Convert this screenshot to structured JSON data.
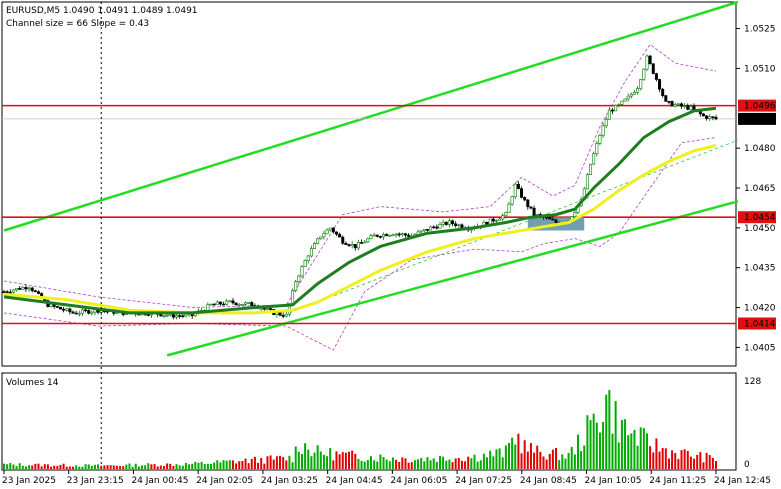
{
  "header": {
    "symbol_line": "EURUSD,M5  1.0490 1.0491 1.0489 1.0491",
    "channel_line": "Channel size = 66 Slope = 0.43"
  },
  "volume_panel": {
    "title": "Volumes 14",
    "max_label": "128",
    "min_label": "0"
  },
  "colors": {
    "bull_candle": "#007a00",
    "bear_candle": "#000000",
    "ma_fast": "#1e7d1e",
    "ma_slow": "#f0f020",
    "channel": "#22dd22",
    "channel_mid": "#22cc22",
    "bands": "#b040d0",
    "level_line": "#e01010",
    "vol_up": "#00aa00",
    "vol_down": "#e00000",
    "zone": "#5b8fa3"
  },
  "chart_data": {
    "type": "candlestick",
    "symbol": "EURUSD",
    "timeframe": "M5",
    "ylim": [
      1.0398,
      1.0535
    ],
    "y_ticks": [
      "1.0525",
      "1.0510",
      "1.0496",
      "1.0491",
      "1.0480",
      "1.0465",
      "1.0454",
      "1.0450",
      "1.0435",
      "1.0420",
      "1.0414",
      "1.0405"
    ],
    "x_ticks": [
      "23 Jan 2025",
      "23 Jan 23:15",
      "24 Jan 00:45",
      "24 Jan 02:05",
      "24 Jan 03:25",
      "24 Jan 04:45",
      "24 Jan 06:05",
      "24 Jan 07:25",
      "24 Jan 08:45",
      "24 Jan 10:05",
      "24 Jan 11:25",
      "24 Jan 12:45"
    ],
    "levels": [
      {
        "label": "1.0496",
        "value": 1.0496
      },
      {
        "label": "1.0454",
        "value": 1.0454
      },
      {
        "label": "1.0414",
        "value": 1.0414
      }
    ],
    "current_price_label": "1.0491",
    "current_price": 1.0491,
    "channel": {
      "upper": [
        [
          0,
          1.0449
        ],
        [
          234,
          1.0535
        ]
      ],
      "lower": [
        [
          52,
          1.0402
        ],
        [
          234,
          1.046
        ]
      ],
      "middle": [
        [
          91,
          1.0418
        ],
        [
          234,
          1.0483
        ]
      ]
    },
    "accumulation_zone": {
      "from_bar": 167,
      "to_bar": 185,
      "low": 1.0449,
      "high": 1.0454
    },
    "vertical_marker_bar": 31,
    "close_path": [
      [
        0,
        1.0426
      ],
      [
        8,
        1.0428
      ],
      [
        14,
        1.0421
      ],
      [
        22,
        1.0418
      ],
      [
        30,
        1.0419
      ],
      [
        38,
        1.0418
      ],
      [
        46,
        1.0418
      ],
      [
        54,
        1.0417
      ],
      [
        60,
        1.0417
      ],
      [
        66,
        1.0421
      ],
      [
        72,
        1.0422
      ],
      [
        80,
        1.0421
      ],
      [
        86,
        1.0418
      ],
      [
        90,
        1.0417
      ],
      [
        93,
        1.043
      ],
      [
        97,
        1.044
      ],
      [
        101,
        1.0447
      ],
      [
        104,
        1.045
      ],
      [
        108,
        1.0445
      ],
      [
        112,
        1.0443
      ],
      [
        118,
        1.0447
      ],
      [
        124,
        1.0448
      ],
      [
        130,
        1.0447
      ],
      [
        136,
        1.045
      ],
      [
        142,
        1.0452
      ],
      [
        148,
        1.045
      ],
      [
        152,
        1.0451
      ],
      [
        156,
        1.0453
      ],
      [
        160,
        1.0455
      ],
      [
        163,
        1.0466
      ],
      [
        166,
        1.046
      ],
      [
        169,
        1.0455
      ],
      [
        172,
        1.0454
      ],
      [
        176,
        1.0452
      ],
      [
        180,
        1.0453
      ],
      [
        184,
        1.046
      ],
      [
        187,
        1.0474
      ],
      [
        190,
        1.0485
      ],
      [
        193,
        1.0494
      ],
      [
        196,
        1.0496
      ],
      [
        199,
        1.0499
      ],
      [
        202,
        1.0503
      ],
      [
        205,
        1.0514
      ],
      [
        208,
        1.0506
      ],
      [
        211,
        1.0497
      ],
      [
        215,
        1.0496
      ],
      [
        219,
        1.0495
      ],
      [
        223,
        1.0492
      ],
      [
        227,
        1.0491
      ]
    ],
    "ma_fast": [
      [
        0,
        1.0424
      ],
      [
        20,
        1.0421
      ],
      [
        40,
        1.0418
      ],
      [
        60,
        1.0418
      ],
      [
        80,
        1.042
      ],
      [
        92,
        1.0421
      ],
      [
        100,
        1.0429
      ],
      [
        110,
        1.0437
      ],
      [
        120,
        1.0443
      ],
      [
        135,
        1.0448
      ],
      [
        150,
        1.045
      ],
      [
        160,
        1.0452
      ],
      [
        168,
        1.0454
      ],
      [
        176,
        1.0455
      ],
      [
        182,
        1.0457
      ],
      [
        188,
        1.0465
      ],
      [
        196,
        1.0474
      ],
      [
        204,
        1.0484
      ],
      [
        212,
        1.049
      ],
      [
        220,
        1.0494
      ],
      [
        227,
        1.0495
      ]
    ],
    "ma_slow": [
      [
        0,
        1.0425
      ],
      [
        20,
        1.0423
      ],
      [
        40,
        1.0419
      ],
      [
        60,
        1.0418
      ],
      [
        80,
        1.0418
      ],
      [
        92,
        1.0419
      ],
      [
        100,
        1.0422
      ],
      [
        110,
        1.0428
      ],
      [
        120,
        1.0434
      ],
      [
        135,
        1.0441
      ],
      [
        150,
        1.0446
      ],
      [
        160,
        1.0448
      ],
      [
        170,
        1.045
      ],
      [
        180,
        1.0452
      ],
      [
        188,
        1.0457
      ],
      [
        196,
        1.0464
      ],
      [
        204,
        1.047
      ],
      [
        212,
        1.0475
      ],
      [
        220,
        1.0479
      ],
      [
        227,
        1.0481
      ]
    ],
    "bands_upper": [
      [
        0,
        1.043
      ],
      [
        30,
        1.0424
      ],
      [
        60,
        1.042
      ],
      [
        90,
        1.0421
      ],
      [
        100,
        1.044
      ],
      [
        108,
        1.0455
      ],
      [
        120,
        1.0458
      ],
      [
        140,
        1.0456
      ],
      [
        155,
        1.0458
      ],
      [
        165,
        1.0469
      ],
      [
        175,
        1.0462
      ],
      [
        182,
        1.0466
      ],
      [
        190,
        1.0488
      ],
      [
        198,
        1.0505
      ],
      [
        206,
        1.0519
      ],
      [
        214,
        1.0512
      ],
      [
        227,
        1.0509
      ]
    ],
    "bands_lower": [
      [
        0,
        1.0418
      ],
      [
        30,
        1.0413
      ],
      [
        60,
        1.0414
      ],
      [
        90,
        1.0413
      ],
      [
        100,
        1.0407
      ],
      [
        105,
        1.0404
      ],
      [
        115,
        1.0426
      ],
      [
        130,
        1.0438
      ],
      [
        150,
        1.0442
      ],
      [
        165,
        1.0441
      ],
      [
        172,
        1.0444
      ],
      [
        182,
        1.0446
      ],
      [
        190,
        1.0443
      ],
      [
        196,
        1.0448
      ],
      [
        206,
        1.0465
      ],
      [
        216,
        1.0482
      ],
      [
        227,
        1.0484
      ]
    ],
    "volume": {
      "ylim": [
        0,
        128
      ],
      "peaks": [
        [
          0,
          8
        ],
        [
          30,
          6
        ],
        [
          60,
          9
        ],
        [
          92,
          20
        ],
        [
          94,
          46
        ],
        [
          100,
          30
        ],
        [
          110,
          24
        ],
        [
          130,
          18
        ],
        [
          150,
          22
        ],
        [
          160,
          30
        ],
        [
          163,
          62
        ],
        [
          166,
          40
        ],
        [
          170,
          30
        ],
        [
          180,
          24
        ],
        [
          185,
          60
        ],
        [
          190,
          100
        ],
        [
          192,
          128
        ],
        [
          196,
          80
        ],
        [
          200,
          64
        ],
        [
          205,
          48
        ],
        [
          212,
          32
        ],
        [
          220,
          24
        ],
        [
          227,
          18
        ]
      ]
    }
  }
}
